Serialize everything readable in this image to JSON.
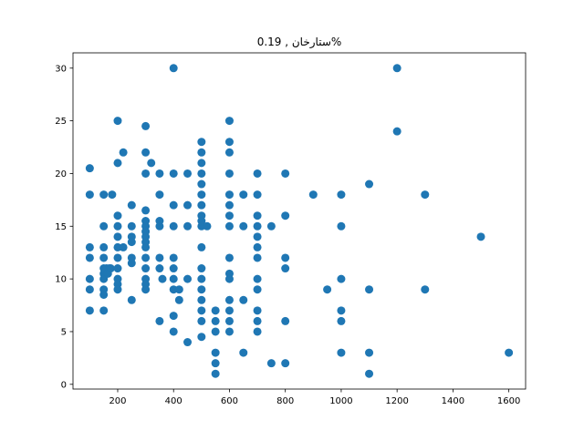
{
  "chart_data": {
    "type": "scatter",
    "title": "ستارخان , 0.19%",
    "xlabel": "",
    "ylabel": "",
    "xlim": [
      40,
      1660
    ],
    "ylim": [
      -0.45,
      31.45
    ],
    "xticks": [
      200,
      400,
      600,
      800,
      1000,
      1200,
      1400,
      1600
    ],
    "yticks": [
      0,
      5,
      10,
      15,
      20,
      25,
      30
    ],
    "grid": false,
    "legend": "none",
    "marker_color": "#1f77b4",
    "points": [
      [
        100,
        20.5
      ],
      [
        100,
        18
      ],
      [
        100,
        13
      ],
      [
        100,
        12
      ],
      [
        100,
        10
      ],
      [
        100,
        9
      ],
      [
        100,
        7
      ],
      [
        150,
        18
      ],
      [
        150,
        15
      ],
      [
        150,
        13
      ],
      [
        150,
        12
      ],
      [
        150,
        11
      ],
      [
        150,
        10.5
      ],
      [
        150,
        10
      ],
      [
        150,
        9
      ],
      [
        150,
        8.5
      ],
      [
        150,
        7
      ],
      [
        160,
        11
      ],
      [
        165,
        10.5
      ],
      [
        170,
        11
      ],
      [
        175,
        11
      ],
      [
        180,
        18
      ],
      [
        200,
        25
      ],
      [
        200,
        21
      ],
      [
        200,
        16
      ],
      [
        200,
        15
      ],
      [
        200,
        14
      ],
      [
        200,
        13
      ],
      [
        200,
        12
      ],
      [
        200,
        11
      ],
      [
        200,
        10
      ],
      [
        200,
        9.5
      ],
      [
        200,
        9
      ],
      [
        220,
        22
      ],
      [
        220,
        13
      ],
      [
        250,
        17
      ],
      [
        250,
        15
      ],
      [
        250,
        14
      ],
      [
        250,
        13.5
      ],
      [
        250,
        12
      ],
      [
        250,
        11.5
      ],
      [
        250,
        8
      ],
      [
        300,
        24.5
      ],
      [
        300,
        22
      ],
      [
        300,
        20
      ],
      [
        300,
        16.5
      ],
      [
        300,
        15.5
      ],
      [
        300,
        15
      ],
      [
        300,
        14.5
      ],
      [
        300,
        14
      ],
      [
        300,
        13.5
      ],
      [
        300,
        13
      ],
      [
        300,
        12
      ],
      [
        300,
        11
      ],
      [
        300,
        10
      ],
      [
        300,
        9.5
      ],
      [
        300,
        9
      ],
      [
        320,
        21
      ],
      [
        350,
        20
      ],
      [
        350,
        18
      ],
      [
        350,
        15.5
      ],
      [
        350,
        15
      ],
      [
        350,
        12
      ],
      [
        350,
        11
      ],
      [
        350,
        6
      ],
      [
        360,
        10
      ],
      [
        400,
        30
      ],
      [
        400,
        20
      ],
      [
        400,
        17
      ],
      [
        400,
        15
      ],
      [
        400,
        12
      ],
      [
        400,
        11
      ],
      [
        400,
        10
      ],
      [
        400,
        9
      ],
      [
        400,
        6.5
      ],
      [
        400,
        5
      ],
      [
        420,
        9
      ],
      [
        420,
        8
      ],
      [
        450,
        20
      ],
      [
        450,
        17
      ],
      [
        450,
        15
      ],
      [
        450,
        10
      ],
      [
        450,
        4
      ],
      [
        500,
        23
      ],
      [
        500,
        22
      ],
      [
        500,
        21
      ],
      [
        500,
        20
      ],
      [
        500,
        19
      ],
      [
        500,
        18
      ],
      [
        500,
        17
      ],
      [
        500,
        16
      ],
      [
        500,
        15.5
      ],
      [
        500,
        15
      ],
      [
        500,
        13
      ],
      [
        500,
        11
      ],
      [
        500,
        10
      ],
      [
        500,
        9
      ],
      [
        500,
        8
      ],
      [
        500,
        7
      ],
      [
        500,
        6
      ],
      [
        500,
        4.5
      ],
      [
        520,
        15
      ],
      [
        550,
        7
      ],
      [
        550,
        6
      ],
      [
        550,
        5
      ],
      [
        550,
        3
      ],
      [
        550,
        2
      ],
      [
        550,
        1
      ],
      [
        600,
        25
      ],
      [
        600,
        23
      ],
      [
        600,
        22
      ],
      [
        600,
        20
      ],
      [
        600,
        18
      ],
      [
        600,
        17
      ],
      [
        600,
        16
      ],
      [
        600,
        15
      ],
      [
        600,
        12
      ],
      [
        600,
        10.5
      ],
      [
        600,
        10
      ],
      [
        600,
        8
      ],
      [
        600,
        7
      ],
      [
        600,
        6
      ],
      [
        600,
        5
      ],
      [
        650,
        18
      ],
      [
        650,
        15
      ],
      [
        650,
        8
      ],
      [
        650,
        3
      ],
      [
        700,
        20
      ],
      [
        700,
        18
      ],
      [
        700,
        16
      ],
      [
        700,
        15
      ],
      [
        700,
        14
      ],
      [
        700,
        13
      ],
      [
        700,
        12
      ],
      [
        700,
        10
      ],
      [
        700,
        9
      ],
      [
        700,
        7
      ],
      [
        700,
        6
      ],
      [
        700,
        5
      ],
      [
        750,
        15
      ],
      [
        750,
        2
      ],
      [
        800,
        20
      ],
      [
        800,
        16
      ],
      [
        800,
        12
      ],
      [
        800,
        11
      ],
      [
        800,
        6
      ],
      [
        800,
        2
      ],
      [
        900,
        18
      ],
      [
        950,
        9
      ],
      [
        1000,
        18
      ],
      [
        1000,
        15
      ],
      [
        1000,
        10
      ],
      [
        1000,
        7
      ],
      [
        1000,
        6
      ],
      [
        1000,
        3
      ],
      [
        1100,
        19
      ],
      [
        1100,
        9
      ],
      [
        1100,
        3
      ],
      [
        1100,
        1
      ],
      [
        1200,
        30
      ],
      [
        1200,
        24
      ],
      [
        1300,
        18
      ],
      [
        1300,
        9
      ],
      [
        1500,
        14
      ],
      [
        1600,
        3
      ]
    ]
  }
}
